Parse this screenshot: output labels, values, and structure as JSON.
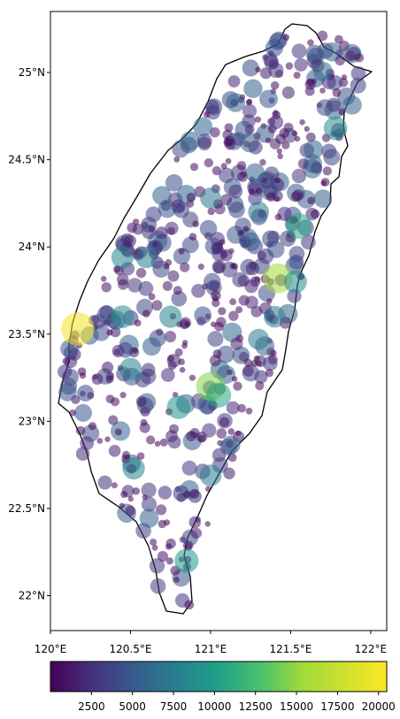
{
  "map": {
    "lon_range": [
      120.0,
      122.1
    ],
    "lat_range": [
      21.8,
      25.35
    ],
    "colormap": [
      "#440154",
      "#3b528b",
      "#21918c",
      "#5ec962",
      "#fde725"
    ],
    "outline_color": "#000000",
    "marker_alpha": 0.55,
    "x_ticks": [
      {
        "value": 120.0,
        "label": "120°E"
      },
      {
        "value": 120.5,
        "label": "120.5°E"
      },
      {
        "value": 121.0,
        "label": "121°E"
      },
      {
        "value": 121.5,
        "label": "121.5°E"
      },
      {
        "value": 122.0,
        "label": "122°E"
      }
    ],
    "y_ticks": [
      {
        "value": 22.0,
        "label": "22°N"
      },
      {
        "value": 22.5,
        "label": "22.5°N"
      },
      {
        "value": 23.0,
        "label": "23°N"
      },
      {
        "value": 23.5,
        "label": "23.5°N"
      },
      {
        "value": 24.0,
        "label": "24°N"
      },
      {
        "value": 24.5,
        "label": "24.5°N"
      },
      {
        "value": 25.0,
        "label": "25°N"
      }
    ]
  },
  "colorbar": {
    "range": [
      0,
      20500
    ],
    "ticks": [
      {
        "value": 2500,
        "label": "2500"
      },
      {
        "value": 5000,
        "label": "5000"
      },
      {
        "value": 7500,
        "label": "7500"
      },
      {
        "value": 10000,
        "label": "10000"
      },
      {
        "value": 12500,
        "label": "12500"
      },
      {
        "value": 15000,
        "label": "15000"
      },
      {
        "value": 17500,
        "label": "17500"
      },
      {
        "value": 20000,
        "label": "20000"
      }
    ]
  },
  "chart_data": {
    "type": "scatter",
    "x_unit": "longitude (°E)",
    "y_unit": "latitude (°N)",
    "color_value_range": [
      0,
      20500
    ],
    "highlight_points": [
      {
        "lon": 120.17,
        "lat": 23.53,
        "value": 20000
      },
      {
        "lon": 121.0,
        "lat": 23.2,
        "value": 14500
      },
      {
        "lon": 121.42,
        "lat": 23.82,
        "value": 15500
      },
      {
        "lon": 121.55,
        "lat": 24.12,
        "value": 11000
      },
      {
        "lon": 121.78,
        "lat": 24.68,
        "value": 9000
      },
      {
        "lon": 120.45,
        "lat": 23.6,
        "value": 8500
      },
      {
        "lon": 120.5,
        "lat": 23.3,
        "value": 8000
      },
      {
        "lon": 121.05,
        "lat": 23.15,
        "value": 10500
      },
      {
        "lon": 121.4,
        "lat": 23.6,
        "value": 7500
      },
      {
        "lon": 121.3,
        "lat": 24.2,
        "value": 7000
      },
      {
        "lon": 121.0,
        "lat": 24.28,
        "value": 7000
      },
      {
        "lon": 120.85,
        "lat": 22.2,
        "value": 9500
      },
      {
        "lon": 120.8,
        "lat": 23.08,
        "value": 9000
      },
      {
        "lon": 120.6,
        "lat": 23.94,
        "value": 7500
      },
      {
        "lon": 120.75,
        "lat": 23.6,
        "value": 8000
      },
      {
        "lon": 121.53,
        "lat": 23.8,
        "value": 8500
      },
      {
        "lon": 120.45,
        "lat": 23.94,
        "value": 8000
      },
      {
        "lon": 121.3,
        "lat": 23.47,
        "value": 7000
      },
      {
        "lon": 121.0,
        "lat": 22.69,
        "value": 7500
      },
      {
        "lon": 120.52,
        "lat": 22.73,
        "value": 8000
      }
    ],
    "background_station_count": 560,
    "background_value_range": [
      100,
      6000
    ]
  }
}
